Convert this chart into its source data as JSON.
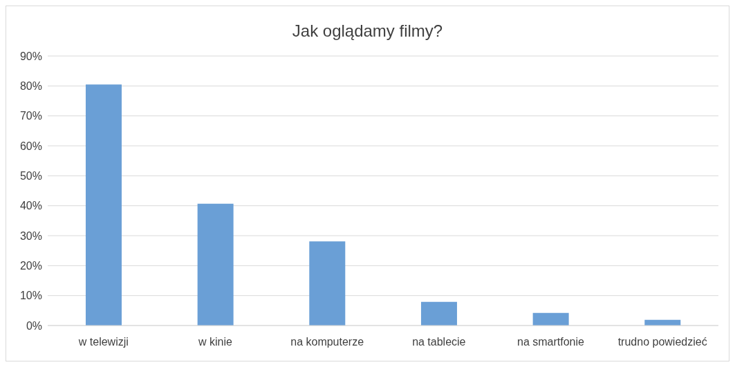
{
  "chart_data": {
    "type": "bar",
    "title": "Jak oglądamy filmy?",
    "categories": [
      "w telewizji",
      "w kinie",
      "na komputerze",
      "na tablecie",
      "na smartfonie",
      "trudno powiedzieć"
    ],
    "values": [
      80.5,
      40.7,
      28.1,
      7.9,
      4.2,
      1.9
    ],
    "color": "#6a9fd6",
    "ylim": [
      0,
      90
    ],
    "yticks": [
      {
        "value": 0,
        "label": "0%"
      },
      {
        "value": 10,
        "label": "10%"
      },
      {
        "value": 20,
        "label": "20%"
      },
      {
        "value": 30,
        "label": "30%"
      },
      {
        "value": 40,
        "label": "40%"
      },
      {
        "value": 50,
        "label": "50%"
      },
      {
        "value": 60,
        "label": "60%"
      },
      {
        "value": 70,
        "label": "70%"
      },
      {
        "value": 80,
        "label": "80%"
      },
      {
        "value": 90,
        "label": "90%"
      }
    ],
    "grid": "y",
    "legend": false
  }
}
